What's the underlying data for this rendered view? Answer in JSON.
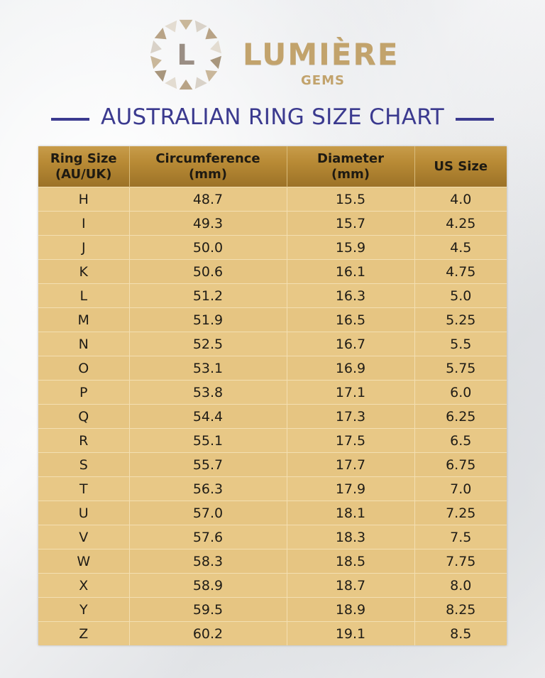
{
  "brand": {
    "logo_letter": "L",
    "name": "LUMIÈRE",
    "sub": "GEMS",
    "colors": {
      "gold": "#c2a36c",
      "accent_blue": "#3b3a8f",
      "header_gold": "#b88a35",
      "cell_gold": "#e8c886"
    }
  },
  "title": "AUSTRALIAN RING SIZE CHART",
  "table": {
    "headers": [
      [
        "Ring Size",
        "(AU/UK)"
      ],
      [
        "Circumference",
        "(mm)"
      ],
      [
        "Diameter",
        "(mm)"
      ],
      [
        "US Size"
      ]
    ],
    "rows": [
      [
        "H",
        "48.7",
        "15.5",
        "4.0"
      ],
      [
        "I",
        "49.3",
        "15.7",
        "4.25"
      ],
      [
        "J",
        "50.0",
        "15.9",
        "4.5"
      ],
      [
        "K",
        "50.6",
        "16.1",
        "4.75"
      ],
      [
        "L",
        "51.2",
        "16.3",
        "5.0"
      ],
      [
        "M",
        "51.9",
        "16.5",
        "5.25"
      ],
      [
        "N",
        "52.5",
        "16.7",
        "5.5"
      ],
      [
        "O",
        "53.1",
        "16.9",
        "5.75"
      ],
      [
        "P",
        "53.8",
        "17.1",
        "6.0"
      ],
      [
        "Q",
        "54.4",
        "17.3",
        "6.25"
      ],
      [
        "R",
        "55.1",
        "17.5",
        "6.5"
      ],
      [
        "S",
        "55.7",
        "17.7",
        "6.75"
      ],
      [
        "T",
        "56.3",
        "17.9",
        "7.0"
      ],
      [
        "U",
        "57.0",
        "18.1",
        "7.25"
      ],
      [
        "V",
        "57.6",
        "18.3",
        "7.5"
      ],
      [
        "W",
        "58.3",
        "18.5",
        "7.75"
      ],
      [
        "X",
        "58.9",
        "18.7",
        "8.0"
      ],
      [
        "Y",
        "59.5",
        "18.9",
        "8.25"
      ],
      [
        "Z",
        "60.2",
        "19.1",
        "8.5"
      ]
    ]
  }
}
